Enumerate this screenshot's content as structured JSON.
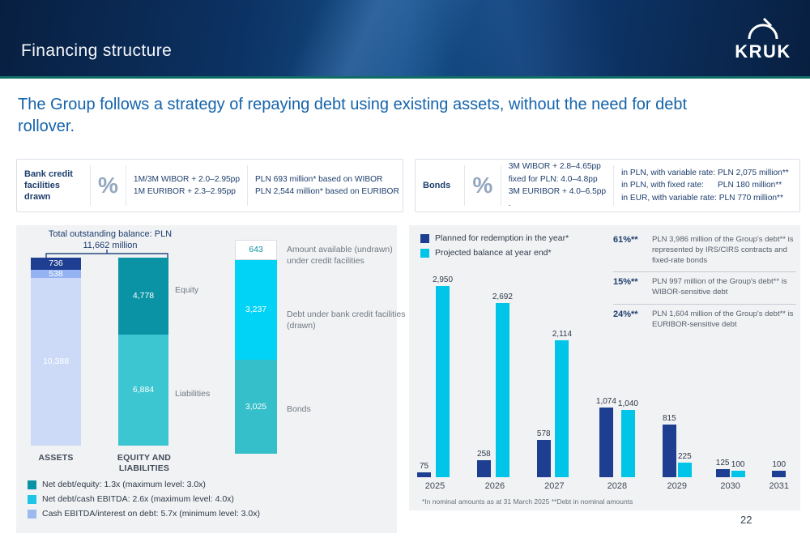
{
  "header": {
    "title": "Financing structure",
    "logo_text": "KRUK"
  },
  "headline": "The Group follows a strategy of repaying debt using existing assets, without the need for debt rollover.",
  "info_boxes": [
    {
      "label": "Bank credit facilities drawn",
      "symbol": "%",
      "rates": [
        "1M/3M WIBOR + 2.0–2.95pp",
        "1M EURIBOR + 2.3–2.95pp"
      ],
      "amounts": [
        "PLN 693 million* based on WIBOR",
        "PLN 2,544 million* based on EURIBOR"
      ]
    },
    {
      "label": "Bonds",
      "symbol": "%",
      "rates": [
        "3M WIBOR + 2.8–4.65pp",
        "fixed for PLN: 4.0–4.8pp",
        "3M EURIBOR + 4.0–6.5pp",
        "."
      ],
      "amounts": [
        "in PLN, with variable rate: PLN 2,075 million**",
        "in PLN, with fixed rate:      PLN 180 million**",
        "in EUR, with variable rate: PLN 770 million**"
      ]
    }
  ],
  "left_panel": {
    "total_label_line1": "Total outstanding balance: PLN",
    "total_label_line2": "11,662 million",
    "legend": [
      {
        "color": "#0a93a4",
        "label": "Net debt/equity: 1.3x (maximum level:  3.0x)"
      },
      {
        "color": "#1ec5e6",
        "label": "Net debt/cash EBITDA: 2.6x (maximum level: 4.0x)"
      },
      {
        "color": "#9db9f0",
        "label": "Cash EBITDA/interest on debt: 5.7x (minimum level: 3.0x)"
      }
    ]
  },
  "right_panel": {
    "notes": [
      {
        "pct": "61%**",
        "text": "PLN 3,986 million of the Group's debt** is represented by IRS/CIRS contracts and fixed-rate bonds"
      },
      {
        "pct": "15%**",
        "text": "PLN 997 million of the Group's debt** is WIBOR-sensitive debt"
      },
      {
        "pct": "24%**",
        "text": "PLN 1,604 million of the Group's debt** is EURIBOR-sensitive debt"
      }
    ]
  },
  "chart_data": [
    {
      "name": "balance_sheet",
      "type": "bar",
      "stacked": true,
      "title": "Total outstanding balance: PLN 11,662 million",
      "categories": [
        "ASSETS",
        "EQUITY AND LIABILITIES"
      ],
      "bars": [
        {
          "category": "ASSETS",
          "segments": [
            {
              "label": "736",
              "value": 736,
              "color": "#1e3f91",
              "text": "#ffffff"
            },
            {
              "label": "538",
              "value": 538,
              "color": "#95b3f2",
              "text": "#ffffff"
            },
            {
              "label": "10,388",
              "value": 10388,
              "color": "#ccdaf8",
              "text": "#ffffff"
            }
          ]
        },
        {
          "category": "EQUITY AND LIABILITIES",
          "segments": [
            {
              "label": "4,778",
              "value": 4778,
              "color": "#0a93a4",
              "text": "#ffffff",
              "side_label": "Equity"
            },
            {
              "label": "6,884",
              "value": 6884,
              "color": "#3cc6d2",
              "text": "#ffffff",
              "side_label": "Liabilities"
            }
          ]
        }
      ]
    },
    {
      "name": "credit_facilities_structure",
      "type": "bar",
      "stacked": true,
      "bars": [
        {
          "segments": [
            {
              "label": "643",
              "value": 643,
              "color": "#ffffff",
              "text": "#0a93a4",
              "side_label": "Amount available (undrawn) under credit facilities"
            },
            {
              "label": "3,237",
              "value": 3237,
              "color": "#00d3f5",
              "text": "#ffffff",
              "side_label": "Debt under bank credit facilities (drawn)"
            },
            {
              "label": "3,025",
              "value": 3025,
              "color": "#35bfca",
              "text": "#ffffff",
              "side_label": "Bonds"
            }
          ]
        }
      ]
    },
    {
      "name": "redemption_schedule",
      "type": "bar",
      "categories": [
        "2025",
        "2026",
        "2027",
        "2028",
        "2029",
        "2030",
        "2031"
      ],
      "series": [
        {
          "name": "Planned for redemption in the year*",
          "color": "#1e3f91",
          "labels": [
            "75",
            "258",
            "578",
            "1,074",
            "815",
            "125",
            "100"
          ],
          "values": [
            75,
            258,
            578,
            1074,
            815,
            125,
            100
          ]
        },
        {
          "name": "Projected balance at year end*",
          "color": "#00c5e9",
          "labels": [
            "2,950",
            "2,692",
            "2,114",
            "1,040",
            "225",
            "100",
            ""
          ],
          "values": [
            2950,
            2692,
            2114,
            1040,
            225,
            100,
            null
          ]
        }
      ],
      "ylim": [
        0,
        2950
      ],
      "legend_position": "top-left",
      "footnote": "*In nominal amounts as at 31 March 2025 **Debt in nominal amounts"
    }
  ],
  "page_number": "22"
}
